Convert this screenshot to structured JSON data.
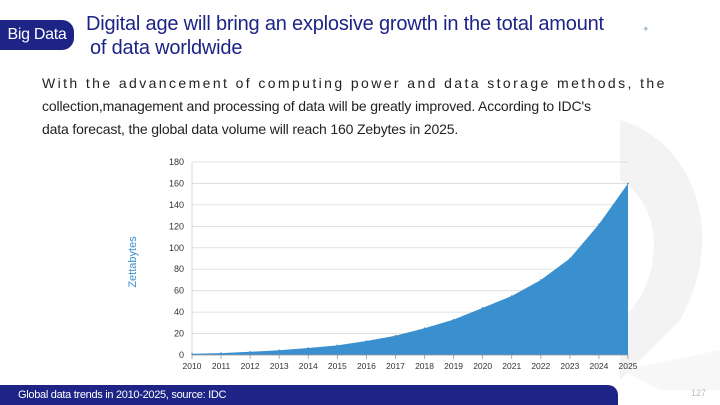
{
  "header": {
    "badge": "Big Data",
    "title_line1": "Digital age will bring an explosive growth in the total amount",
    "title_line2": "of data worldwide"
  },
  "body": {
    "line1": "With the advancement of computing power and data storage methods, the",
    "line2": "collection,management and processing of data will be greatly improved. According to IDC's",
    "line3": "data forecast, the global data volume will reach 160 Zebytes in 2025."
  },
  "footer": {
    "caption": "Global data trends in 2010-2025, source: IDC"
  },
  "page_number": "127",
  "colors": {
    "brand": "#1d2486",
    "series": "#3a8fcf",
    "axis_label": "#3a8fcf"
  },
  "chart_data": {
    "type": "area",
    "ylabel": "Zettabytes",
    "ylim": [
      0,
      180
    ],
    "yticks": [
      0,
      20,
      40,
      60,
      80,
      100,
      120,
      140,
      160,
      180
    ],
    "x": [
      2010,
      2011,
      2012,
      2013,
      2014,
      2015,
      2016,
      2017,
      2018,
      2019,
      2020,
      2021,
      2022,
      2023,
      2024,
      2025
    ],
    "values": [
      1.2,
      1.8,
      3,
      4.4,
      6.5,
      9,
      13,
      18,
      25,
      33,
      44,
      55,
      70,
      90,
      122,
      160
    ],
    "grid": true
  }
}
